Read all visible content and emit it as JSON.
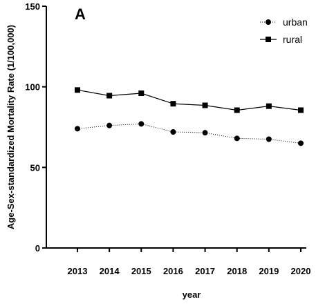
{
  "chart_data": {
    "type": "line",
    "panel_label": "A",
    "xlabel": "year",
    "ylabel": "Age-Sex-standardized Mortality Rate (1/100,000)",
    "categories": [
      "2013",
      "2014",
      "2015",
      "2016",
      "2017",
      "2018",
      "2019",
      "2020"
    ],
    "ylim": [
      0,
      150
    ],
    "yticks": [
      0,
      50,
      100,
      150
    ],
    "grid": false,
    "legend_position": "top-right",
    "series": [
      {
        "name": "urban",
        "marker": "circle",
        "line_style": "dotted",
        "color": "#000000",
        "values": [
          74,
          76,
          77,
          72,
          71.5,
          68,
          67.5,
          65
        ]
      },
      {
        "name": "rural",
        "marker": "square",
        "line_style": "solid",
        "color": "#000000",
        "values": [
          98,
          94.5,
          96,
          89.5,
          88.5,
          85.5,
          88,
          85.5
        ]
      }
    ]
  }
}
